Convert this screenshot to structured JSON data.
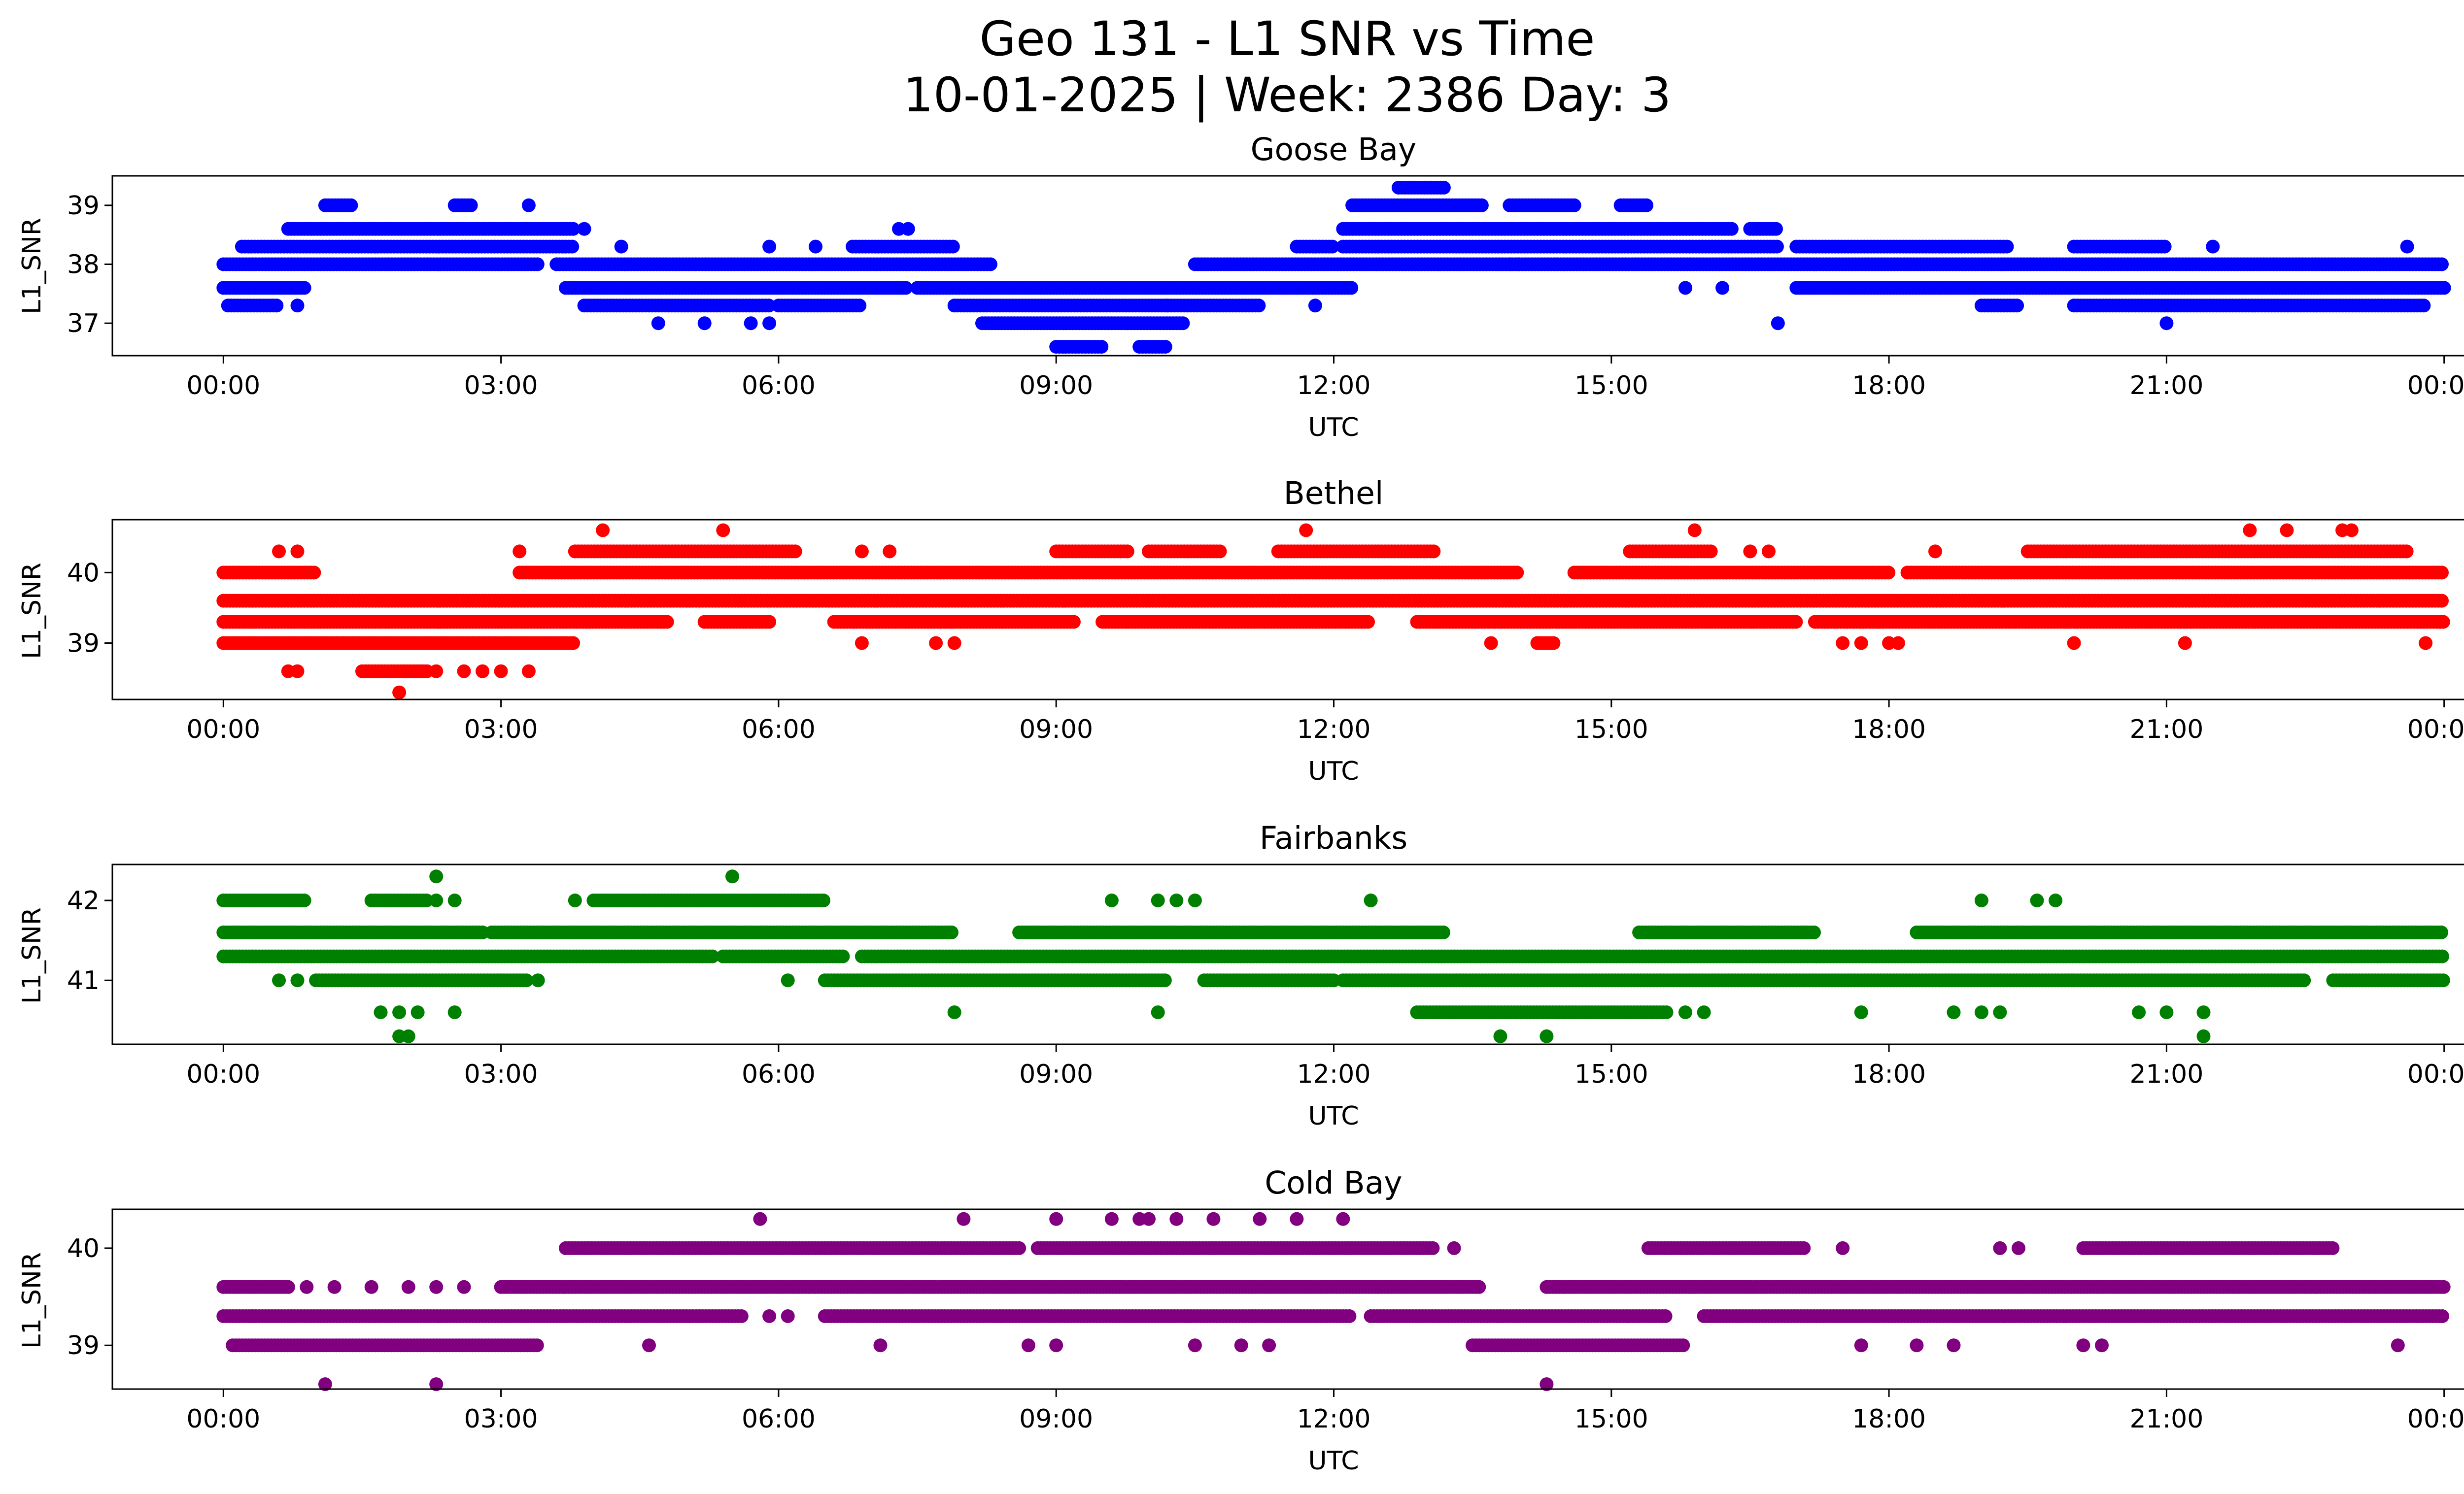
{
  "figure": {
    "title_line1": "Geo 131 - L1 SNR vs Time",
    "title_line2": "10-01-2025 | Week: 2386 Day: 3"
  },
  "chart_data": [
    {
      "type": "scatter",
      "title": "Goose Bay",
      "xlabel": "UTC",
      "ylabel": "L1_SNR",
      "color": "#0000ff",
      "x_ticks": [
        "00:00",
        "03:00",
        "06:00",
        "09:00",
        "12:00",
        "15:00",
        "18:00",
        "21:00",
        "00:00"
      ],
      "x_range_hours": [
        -1.2,
        25.2
      ],
      "y_ticks": [
        37,
        38,
        39
      ],
      "ylim": [
        36.45,
        39.5
      ],
      "levels": [
        36.6,
        37.0,
        37.3,
        37.6,
        38.0,
        38.3,
        38.6,
        39.0,
        39.3
      ],
      "series_segments_hours": [
        {
          "y": 38.0,
          "ranges": [
            [
              0,
              3.4
            ],
            [
              3.6,
              8.3
            ],
            [
              10.5,
              24
            ]
          ]
        },
        {
          "y": 37.6,
          "ranges": [
            [
              0,
              0.9
            ],
            [
              3.7,
              7.4
            ],
            [
              7.5,
              12.2
            ],
            [
              17.0,
              24
            ]
          ]
        },
        {
          "y": 37.3,
          "ranges": [
            [
              0.05,
              0.6
            ],
            [
              3.9,
              5.9
            ],
            [
              6.0,
              6.9
            ],
            [
              7.9,
              11.2
            ],
            [
              19.0,
              19.4
            ],
            [
              20.0,
              23.8
            ]
          ]
        },
        {
          "y": 38.3,
          "ranges": [
            [
              0.2,
              3.8
            ],
            [
              6.8,
              7.9
            ],
            [
              11.6,
              12.0
            ],
            [
              12.1,
              16.8
            ],
            [
              17.0,
              19.3
            ],
            [
              20.0,
              21.0
            ]
          ]
        },
        {
          "y": 38.6,
          "ranges": [
            [
              0.7,
              3.8
            ],
            [
              12.1,
              16.3
            ],
            [
              16.5,
              16.8
            ]
          ]
        },
        {
          "y": 37.0,
          "ranges": [
            [
              8.2,
              10.4
            ]
          ]
        },
        {
          "y": 39.0,
          "ranges": [
            [
              1.1,
              1.4
            ],
            [
              2.5,
              2.7
            ],
            [
              12.2,
              13.6
            ],
            [
              13.9,
              14.6
            ],
            [
              15.1,
              15.4
            ]
          ]
        },
        {
          "y": 39.3,
          "ranges": [
            [
              12.7,
              13.2
            ]
          ]
        },
        {
          "y": 36.6,
          "ranges": [
            [
              9.0,
              9.5
            ],
            [
              9.9,
              10.2
            ]
          ]
        }
      ],
      "series_points_hours": [
        {
          "y": 38.0,
          "x": [
            13.9,
            14.0
          ]
        },
        {
          "y": 37.6,
          "x": [
            15.8,
            16.2
          ]
        },
        {
          "y": 37.0,
          "x": [
            4.7,
            5.2,
            5.7,
            5.9,
            16.8,
            21.0
          ]
        },
        {
          "y": 37.3,
          "x": [
            0.8,
            10.2,
            11.8
          ]
        },
        {
          "y": 38.3,
          "x": [
            4.3,
            5.9,
            6.4,
            21.5,
            23.6
          ]
        },
        {
          "y": 38.6,
          "x": [
            3.9,
            7.3,
            7.4
          ]
        },
        {
          "y": 39.0,
          "x": [
            3.3
          ]
        }
      ]
    },
    {
      "type": "scatter",
      "title": "Bethel",
      "xlabel": "UTC",
      "ylabel": "L1_SNR",
      "color": "#ff0000",
      "x_ticks": [
        "00:00",
        "03:00",
        "06:00",
        "09:00",
        "12:00",
        "15:00",
        "18:00",
        "21:00",
        "00:00"
      ],
      "x_range_hours": [
        -1.2,
        25.2
      ],
      "y_ticks": [
        39,
        40
      ],
      "ylim": [
        38.2,
        40.75
      ],
      "levels": [
        38.3,
        38.6,
        39.0,
        39.3,
        39.6,
        40.0,
        40.3,
        40.6
      ],
      "series_segments_hours": [
        {
          "y": 39.6,
          "ranges": [
            [
              0,
              24
            ]
          ]
        },
        {
          "y": 39.3,
          "ranges": [
            [
              0,
              4.8
            ],
            [
              5.2,
              5.9
            ],
            [
              6.6,
              9.2
            ],
            [
              9.5,
              12.4
            ],
            [
              12.9,
              17.0
            ],
            [
              17.2,
              24
            ]
          ]
        },
        {
          "y": 40.0,
          "ranges": [
            [
              0,
              1.0
            ],
            [
              3.2,
              14.0
            ],
            [
              14.6,
              18.0
            ],
            [
              18.2,
              24
            ]
          ]
        },
        {
          "y": 39.0,
          "ranges": [
            [
              0,
              3.8
            ],
            [
              14.2,
              14.4
            ]
          ]
        },
        {
          "y": 40.3,
          "ranges": [
            [
              3.8,
              6.2
            ],
            [
              9.0,
              9.8
            ],
            [
              10.0,
              10.8
            ],
            [
              11.4,
              13.1
            ],
            [
              15.2,
              16.1
            ],
            [
              19.5,
              23.6
            ]
          ]
        },
        {
          "y": 38.6,
          "ranges": [
            [
              1.5,
              2.2
            ]
          ]
        }
      ],
      "series_points_hours": [
        {
          "y": 40.3,
          "x": [
            0.6,
            0.8,
            3.2,
            6.9,
            7.2,
            16.5,
            16.7,
            18.5
          ]
        },
        {
          "y": 40.6,
          "x": [
            4.1,
            5.4,
            11.7,
            15.9,
            21.9,
            22.3,
            22.9,
            23.0
          ]
        },
        {
          "y": 39.0,
          "x": [
            6.9,
            7.7,
            7.9,
            13.7,
            14.2,
            17.5,
            17.7,
            18.0,
            18.1,
            20.0,
            21.2,
            23.8
          ]
        },
        {
          "y": 38.6,
          "x": [
            0.7,
            0.8,
            2.3,
            2.6,
            2.8,
            3.0,
            3.3
          ]
        },
        {
          "y": 38.3,
          "x": [
            1.9
          ]
        }
      ]
    },
    {
      "type": "scatter",
      "title": "Fairbanks",
      "xlabel": "UTC",
      "ylabel": "L1_SNR",
      "color": "#008000",
      "x_ticks": [
        "00:00",
        "03:00",
        "06:00",
        "09:00",
        "12:00",
        "15:00",
        "18:00",
        "21:00",
        "00:00"
      ],
      "x_range_hours": [
        -1.2,
        25.2
      ],
      "y_ticks": [
        41,
        42
      ],
      "ylim": [
        40.2,
        42.45
      ],
      "levels": [
        40.3,
        40.6,
        41.0,
        41.3,
        41.6,
        42.0,
        42.3
      ],
      "series_segments_hours": [
        {
          "y": 41.3,
          "ranges": [
            [
              0,
              5.3
            ],
            [
              5.4,
              6.7
            ],
            [
              6.9,
              24
            ]
          ]
        },
        {
          "y": 41.6,
          "ranges": [
            [
              0,
              2.8
            ],
            [
              2.9,
              7.9
            ],
            [
              8.6,
              13.2
            ],
            [
              15.3,
              17.2
            ],
            [
              18.3,
              24
            ]
          ]
        },
        {
          "y": 41.0,
          "ranges": [
            [
              1.0,
              3.3
            ],
            [
              6.5,
              10.2
            ],
            [
              10.6,
              12.0
            ],
            [
              12.1,
              20.0
            ],
            [
              20.0,
              22.5
            ],
            [
              22.8,
              24
            ]
          ]
        },
        {
          "y": 42.0,
          "ranges": [
            [
              0,
              0.9
            ],
            [
              1.6,
              2.2
            ],
            [
              4.0,
              6.5
            ]
          ]
        },
        {
          "y": 40.6,
          "ranges": [
            [
              12.9,
              15.6
            ]
          ]
        }
      ],
      "series_points_hours": [
        {
          "y": 42.0,
          "x": [
            2.3,
            2.5,
            3.8,
            9.6,
            10.1,
            10.3,
            10.5,
            12.4,
            19.0,
            19.6,
            19.8
          ]
        },
        {
          "y": 42.3,
          "x": [
            2.3,
            5.5
          ]
        },
        {
          "y": 41.0,
          "x": [
            0.6,
            0.8,
            6.1,
            3.4
          ]
        },
        {
          "y": 40.6,
          "x": [
            1.7,
            1.9,
            2.1,
            2.5,
            7.9,
            10.1,
            15.8,
            16.0,
            17.7,
            18.7,
            19.0,
            19.2,
            20.7,
            21.0,
            21.4
          ]
        },
        {
          "y": 40.3,
          "x": [
            1.9,
            2.0,
            13.8,
            14.3,
            21.4
          ]
        }
      ]
    },
    {
      "type": "scatter",
      "title": "Cold Bay",
      "xlabel": "UTC",
      "ylabel": "L1_SNR",
      "color": "#800080",
      "x_ticks": [
        "00:00",
        "03:00",
        "06:00",
        "09:00",
        "12:00",
        "15:00",
        "18:00",
        "21:00",
        "00:00"
      ],
      "x_range_hours": [
        -1.2,
        25.2
      ],
      "y_ticks": [
        39,
        40
      ],
      "ylim": [
        38.55,
        40.4
      ],
      "levels": [
        38.6,
        39.0,
        39.3,
        39.6,
        40.0,
        40.3
      ],
      "series_segments_hours": [
        {
          "y": 39.3,
          "ranges": [
            [
              0,
              5.6
            ],
            [
              6.5,
              12.2
            ],
            [
              12.4,
              15.6
            ],
            [
              16.0,
              24
            ]
          ]
        },
        {
          "y": 39.6,
          "ranges": [
            [
              0,
              0.7
            ],
            [
              3.0,
              13.6
            ],
            [
              14.3,
              24
            ]
          ]
        },
        {
          "y": 39.0,
          "ranges": [
            [
              0.1,
              3.4
            ],
            [
              13.5,
              15.8
            ]
          ]
        },
        {
          "y": 40.0,
          "ranges": [
            [
              3.7,
              8.6
            ],
            [
              8.8,
              13.1
            ],
            [
              15.4,
              17.1
            ],
            [
              20.1,
              22.8
            ]
          ]
        }
      ],
      "series_points_hours": [
        {
          "y": 39.6,
          "x": [
            0.9,
            1.2,
            1.6,
            2.0,
            2.3,
            2.6
          ]
        },
        {
          "y": 39.3,
          "x": [
            5.9,
            6.1
          ]
        },
        {
          "y": 39.0,
          "x": [
            4.6,
            7.1,
            8.7,
            9.0,
            10.5,
            11.0,
            11.3,
            17.7,
            18.3,
            18.7,
            20.1,
            20.3,
            23.5
          ]
        },
        {
          "y": 40.0,
          "x": [
            13.3,
            17.5,
            19.2,
            19.4
          ]
        },
        {
          "y": 40.3,
          "x": [
            5.8,
            8.0,
            9.0,
            9.6,
            9.9,
            10.0,
            10.3,
            10.7,
            11.2,
            11.6,
            12.1
          ]
        },
        {
          "y": 38.6,
          "x": [
            1.1,
            2.3,
            14.3
          ]
        }
      ]
    }
  ]
}
